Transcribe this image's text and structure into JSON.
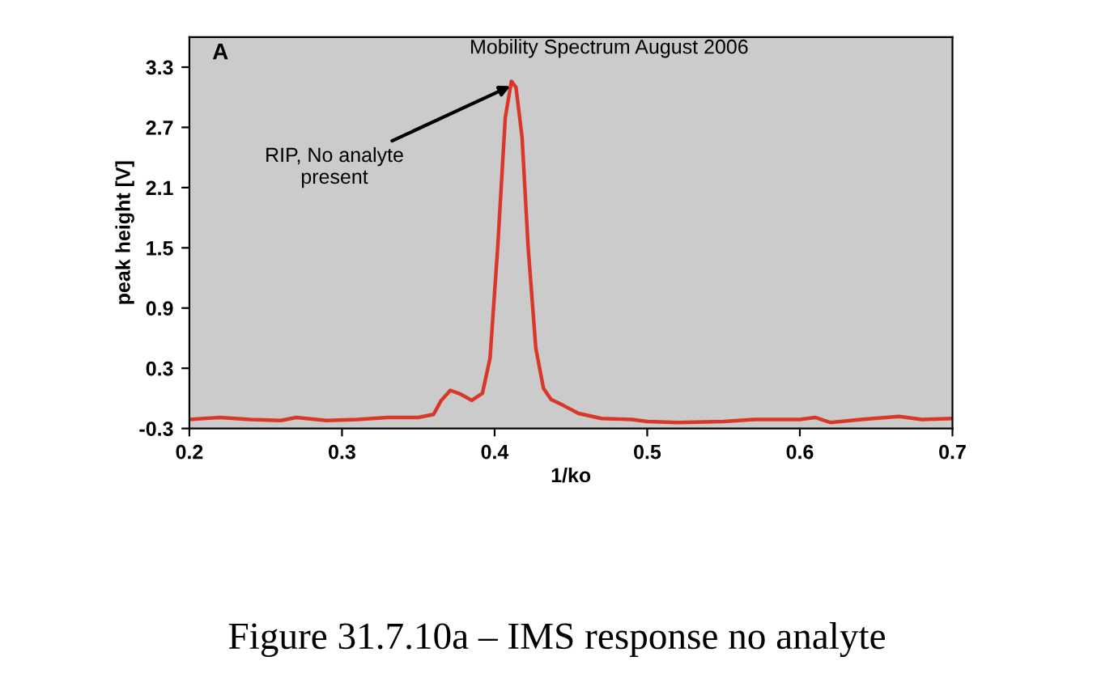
{
  "chart_data": {
    "type": "line",
    "title": "Mobility Spectrum August 2006",
    "xlabel": "1/ko",
    "ylabel": "peak height [V]",
    "x": [
      0.2,
      0.22,
      0.24,
      0.26,
      0.27,
      0.29,
      0.31,
      0.33,
      0.35,
      0.36,
      0.365,
      0.371,
      0.378,
      0.385,
      0.392,
      0.397,
      0.402,
      0.407,
      0.411,
      0.414,
      0.418,
      0.422,
      0.427,
      0.432,
      0.437,
      0.445,
      0.455,
      0.47,
      0.49,
      0.5,
      0.52,
      0.55,
      0.57,
      0.6,
      0.61,
      0.62,
      0.64,
      0.665,
      0.68,
      0.7
    ],
    "series": [
      {
        "color": "#d8382a",
        "values": [
          -0.21,
          -0.19,
          -0.21,
          -0.22,
          -0.19,
          -0.22,
          -0.21,
          -0.19,
          -0.19,
          -0.16,
          -0.02,
          0.08,
          0.04,
          -0.02,
          0.05,
          0.4,
          1.5,
          2.8,
          3.16,
          3.1,
          2.6,
          1.5,
          0.5,
          0.1,
          -0.01,
          -0.07,
          -0.15,
          -0.2,
          -0.21,
          -0.23,
          -0.24,
          -0.23,
          -0.21,
          -0.21,
          -0.19,
          -0.24,
          -0.21,
          -0.18,
          -0.21,
          -0.2
        ]
      }
    ],
    "xlim": [
      0.2,
      0.7
    ],
    "xticks": [
      0.2,
      0.3,
      0.4,
      0.5,
      0.6,
      0.7
    ],
    "ylim": [
      -0.3,
      3.6
    ],
    "yticks": [
      -0.3,
      0.3,
      0.9,
      1.5,
      2.1,
      2.7,
      3.3
    ],
    "grid": false,
    "legend": false,
    "marker": "none",
    "line_style": "solid",
    "annotations": [
      "A",
      {
        "text": "RIP, No analyte\npresent",
        "x": 0.413,
        "y": 3.13
      },
      "Figure 31.7.10a – IMS response no analyte"
    ]
  }
}
